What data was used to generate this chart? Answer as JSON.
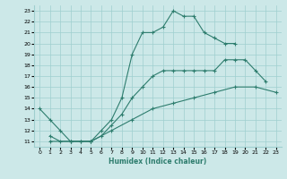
{
  "xlabel": "Humidex (Indice chaleur)",
  "xlim": [
    -0.5,
    23.5
  ],
  "ylim": [
    10.5,
    23.5
  ],
  "yticks": [
    11,
    12,
    13,
    14,
    15,
    16,
    17,
    18,
    19,
    20,
    21,
    22,
    23
  ],
  "xticks": [
    0,
    1,
    2,
    3,
    4,
    5,
    6,
    7,
    8,
    9,
    10,
    11,
    12,
    13,
    14,
    15,
    16,
    17,
    18,
    19,
    20,
    21,
    22,
    23
  ],
  "line_color": "#2e7d6e",
  "bg_color": "#cce8e8",
  "line1_x": [
    0,
    1,
    2,
    3,
    4,
    5,
    6,
    7,
    8,
    9,
    10,
    11,
    12,
    13,
    14,
    15,
    16,
    17,
    18,
    19
  ],
  "line1_y": [
    14,
    13,
    12,
    11,
    11,
    11,
    12,
    13,
    15,
    19,
    21,
    21,
    21.5,
    23,
    22.5,
    22.5,
    21,
    20.5,
    20,
    20
  ],
  "line2_x": [
    1,
    2,
    3,
    4,
    5,
    6,
    7,
    8,
    9,
    10,
    11,
    12,
    13,
    14,
    15,
    16,
    17,
    18,
    19,
    20,
    21,
    22
  ],
  "line2_y": [
    11.5,
    11,
    11,
    11,
    11,
    11.5,
    12.5,
    13.5,
    15,
    16,
    17,
    17.5,
    17.5,
    17.5,
    17.5,
    17.5,
    17.5,
    18.5,
    18.5,
    18.5,
    17.5,
    16.5
  ],
  "line3_x": [
    1,
    3,
    5,
    7,
    9,
    11,
    13,
    15,
    17,
    19,
    21,
    23
  ],
  "line3_y": [
    11,
    11,
    11,
    12,
    13,
    14,
    14.5,
    15,
    15.5,
    16,
    16,
    15.5
  ]
}
